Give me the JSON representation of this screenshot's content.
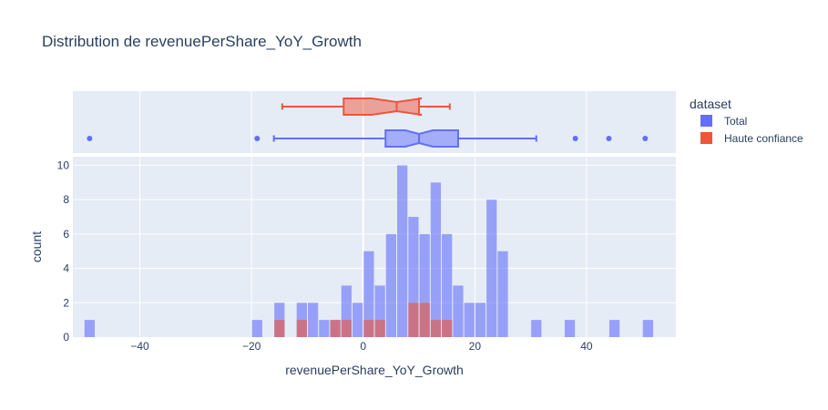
{
  "chart_data": {
    "type": "bar",
    "subtype": "histogram-with-marginal-box",
    "title": "Distribution de revenuePerShare_YoY_Growth",
    "xlabel": "revenuePerShare_YoY_Growth",
    "ylabel": "count",
    "xlim": [
      -52,
      56
    ],
    "ylim": [
      0,
      10.5
    ],
    "x_ticks": [
      -40,
      -20,
      0,
      20,
      40
    ],
    "y_ticks": [
      0,
      2,
      4,
      6,
      8,
      10
    ],
    "bin_width": 2,
    "grid": true,
    "barmode": "overlay",
    "legend": {
      "title": "dataset",
      "position": "top-right",
      "items": [
        {
          "label": "Total",
          "color": "#636efa"
        },
        {
          "label": "Haute confiance",
          "color": "#ef553b"
        }
      ]
    },
    "series": [
      {
        "name": "Total",
        "color": "#636efa",
        "bins": [
          {
            "x0": -50,
            "count": 1
          },
          {
            "x0": -20,
            "count": 1
          },
          {
            "x0": -16,
            "count": 2
          },
          {
            "x0": -12,
            "count": 2
          },
          {
            "x0": -10,
            "count": 2
          },
          {
            "x0": -8,
            "count": 1
          },
          {
            "x0": -6,
            "count": 1
          },
          {
            "x0": -4,
            "count": 3
          },
          {
            "x0": -2,
            "count": 2
          },
          {
            "x0": 0,
            "count": 5
          },
          {
            "x0": 2,
            "count": 3
          },
          {
            "x0": 4,
            "count": 6
          },
          {
            "x0": 6,
            "count": 10
          },
          {
            "x0": 8,
            "count": 7
          },
          {
            "x0": 10,
            "count": 6
          },
          {
            "x0": 12,
            "count": 9
          },
          {
            "x0": 14,
            "count": 6
          },
          {
            "x0": 16,
            "count": 3
          },
          {
            "x0": 18,
            "count": 2
          },
          {
            "x0": 20,
            "count": 2
          },
          {
            "x0": 22,
            "count": 8
          },
          {
            "x0": 24,
            "count": 5
          },
          {
            "x0": 30,
            "count": 1
          },
          {
            "x0": 36,
            "count": 1
          },
          {
            "x0": 44,
            "count": 1
          },
          {
            "x0": 50,
            "count": 1
          }
        ],
        "box": {
          "min": -16,
          "q1": 4,
          "median": 10,
          "q3": 17,
          "max": 31,
          "notch_low": 7.5,
          "notch_high": 12.5,
          "outliers": [
            -49,
            -19,
            38,
            44,
            50.5
          ]
        }
      },
      {
        "name": "Haute confiance",
        "color": "#ef553b",
        "bins": [
          {
            "x0": -16,
            "count": 1
          },
          {
            "x0": -12,
            "count": 1
          },
          {
            "x0": -6,
            "count": 1
          },
          {
            "x0": -4,
            "count": 1
          },
          {
            "x0": 0,
            "count": 1
          },
          {
            "x0": 2,
            "count": 1
          },
          {
            "x0": 8,
            "count": 2
          },
          {
            "x0": 10,
            "count": 2
          },
          {
            "x0": 12,
            "count": 1
          },
          {
            "x0": 14,
            "count": 1
          }
        ],
        "box": {
          "min": -14.5,
          "q1": -3.5,
          "median": 6,
          "q3": 10,
          "max": 15.5,
          "notch_low": 1.5,
          "notch_high": 10.5,
          "outliers": []
        }
      }
    ]
  }
}
